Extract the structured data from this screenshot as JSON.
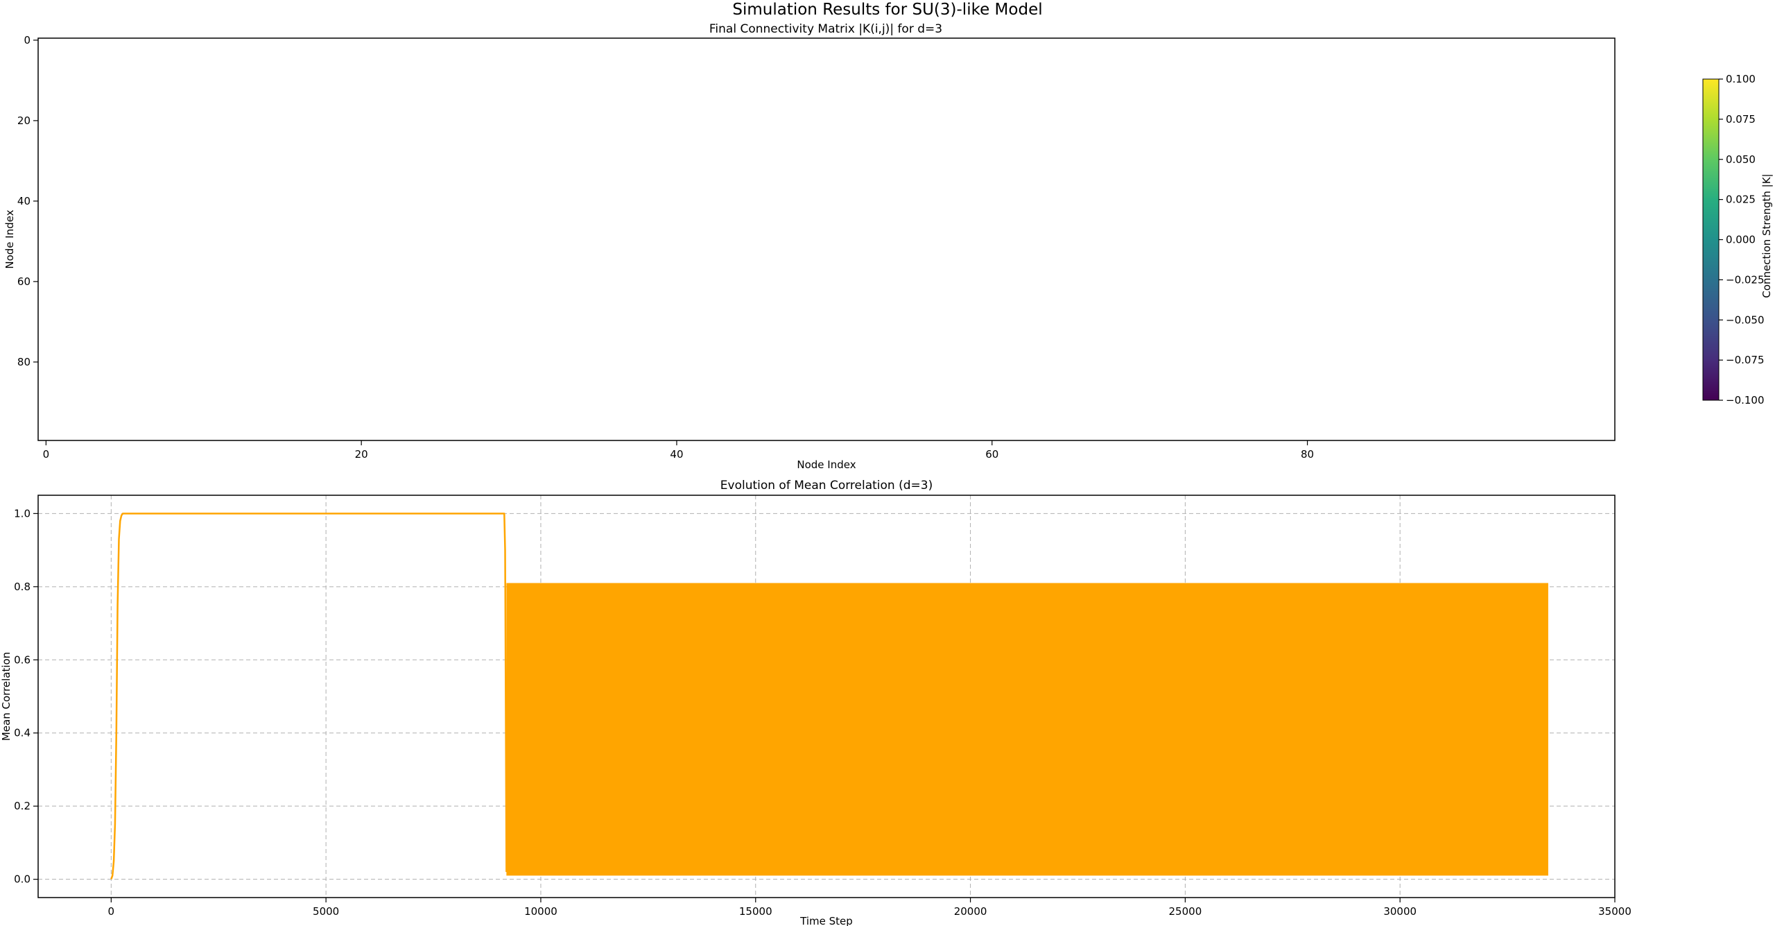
{
  "figure": {
    "suptitle": "Simulation Results for SU(3)-like Model"
  },
  "chart_data": [
    {
      "type": "heatmap",
      "title": "Final Connectivity Matrix |K(i,j)| for d=3",
      "xlabel": "Node Index",
      "ylabel": "Node Index",
      "matrix_size": 100,
      "uniform_value": null,
      "xlim": [
        -0.5,
        99.5
      ],
      "ylim": [
        99.5,
        -0.5
      ],
      "xticks": [
        0,
        20,
        40,
        60,
        80
      ],
      "yticks": [
        0,
        20,
        40,
        60,
        80
      ],
      "colormap": "viridis",
      "colorbar": {
        "label": "Connection Strength |K|",
        "range": [
          -0.1,
          0.1
        ],
        "ticks": [
          "0.100",
          "0.075",
          "0.050",
          "0.025",
          "0.000",
          "−0.025",
          "−0.050",
          "−0.075",
          "−0.100"
        ],
        "tick_values": [
          0.1,
          0.075,
          0.05,
          0.025,
          0.0,
          -0.025,
          -0.05,
          -0.075,
          -0.1
        ]
      }
    },
    {
      "type": "line",
      "title": "Evolution of Mean Correlation (d=3)",
      "xlabel": "Time Step",
      "ylabel": "Mean Correlation",
      "xlim": [
        -1700,
        35000
      ],
      "ylim": [
        -0.05,
        1.05
      ],
      "xticks": [
        0,
        5000,
        10000,
        15000,
        20000,
        25000,
        30000,
        35000
      ],
      "yticks": [
        "0.0",
        "0.2",
        "0.4",
        "0.6",
        "0.8",
        "1.0"
      ],
      "ytick_values": [
        0.0,
        0.2,
        0.4,
        0.6,
        0.8,
        1.0
      ],
      "grid": true,
      "color": "#ffa500",
      "series": [
        {
          "x": [
            0,
            30,
            60,
            90,
            120,
            150,
            180,
            210,
            240,
            270,
            300,
            9150,
            9170,
            9200
          ],
          "y": [
            0.0,
            0.01,
            0.05,
            0.15,
            0.4,
            0.75,
            0.93,
            0.98,
            0.995,
            1.0,
            1.0,
            1.0,
            0.9,
            0.02
          ]
        }
      ],
      "oscillation_band": {
        "x_start": 9200,
        "x_end": 33450,
        "y_min": 0.01,
        "y_max": 0.81
      }
    }
  ]
}
